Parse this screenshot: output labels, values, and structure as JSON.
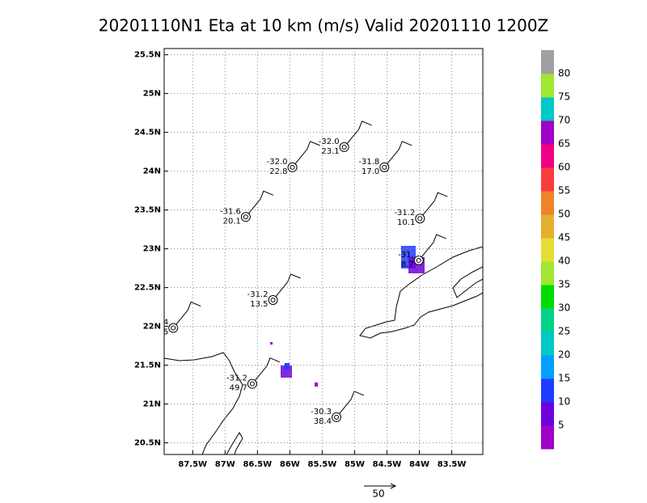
{
  "title": "20201110N1 Eta at 10 km (m/s) Valid 20201110  1200Z",
  "lonlim": [
    -87.94,
    -83.02
  ],
  "latlim": [
    20.35,
    25.58
  ],
  "lon_ticks": [
    {
      "value": -87.5,
      "label": "87.5W"
    },
    {
      "value": -87,
      "label": "87W"
    },
    {
      "value": -86.5,
      "label": "86.5W"
    },
    {
      "value": -86,
      "label": "86W"
    },
    {
      "value": -85.5,
      "label": "85.5W"
    },
    {
      "value": -85,
      "label": "85W"
    },
    {
      "value": -84.5,
      "label": "84.5W"
    },
    {
      "value": -84,
      "label": "84W"
    },
    {
      "value": -83.5,
      "label": "83.5W"
    }
  ],
  "lat_ticks": [
    {
      "value": 20.5,
      "label": "20.5N"
    },
    {
      "value": 21,
      "label": "21N"
    },
    {
      "value": 21.5,
      "label": "21.5N"
    },
    {
      "value": 22,
      "label": "22N"
    },
    {
      "value": 22.5,
      "label": "22.5N"
    },
    {
      "value": 23,
      "label": "23N"
    },
    {
      "value": 23.5,
      "label": "23.5N"
    },
    {
      "value": 24,
      "label": "24N"
    },
    {
      "value": 24.5,
      "label": "24.5N"
    },
    {
      "value": 25,
      "label": "25N"
    },
    {
      "value": 25.5,
      "label": "25.5N"
    }
  ],
  "stations": [
    {
      "lon": -85.16,
      "lat": 24.31,
      "labels": [
        "-32.0",
        "23.1"
      ]
    },
    {
      "lon": -85.96,
      "lat": 24.05,
      "labels": [
        "-32.0",
        "22.8"
      ]
    },
    {
      "lon": -84.54,
      "lat": 24.05,
      "labels": [
        "-31.8",
        "17.0"
      ]
    },
    {
      "lon": -86.68,
      "lat": 23.41,
      "labels": [
        "-31.6",
        "20.1"
      ]
    },
    {
      "lon": -83.99,
      "lat": 23.39,
      "labels": [
        "-31.2",
        "10.1"
      ]
    },
    {
      "lon": -84.01,
      "lat": 22.85,
      "labels": [
        "-31.",
        "8.7"
      ]
    },
    {
      "lon": -86.26,
      "lat": 22.34,
      "labels": [
        "-31.2",
        "13.5"
      ]
    },
    {
      "lon": -87.8,
      "lat": 21.98,
      "labels": [
        "4",
        "5"
      ]
    },
    {
      "lon": -86.58,
      "lat": 21.26,
      "labels": [
        "-31.2",
        "49.7"
      ]
    },
    {
      "lon": -85.28,
      "lat": 20.83,
      "labels": [
        "-30.3",
        "38.4"
      ]
    }
  ],
  "colorbar": {
    "labels": [
      5,
      10,
      15,
      20,
      25,
      30,
      35,
      40,
      45,
      50,
      55,
      60,
      65,
      70,
      75,
      80
    ],
    "colors": [
      "#a000c8",
      "#6e00dc",
      "#1e3cff",
      "#00a0ff",
      "#00c8c8",
      "#00d28c",
      "#00dc00",
      "#a0e632",
      "#e6dc32",
      "#e6af2d",
      "#f08228",
      "#fa3c3c",
      "#f00082",
      "#a000c8",
      "#00c8c8",
      "#a0e632",
      "#a0a0a0"
    ]
  },
  "reference_vector": "50"
}
